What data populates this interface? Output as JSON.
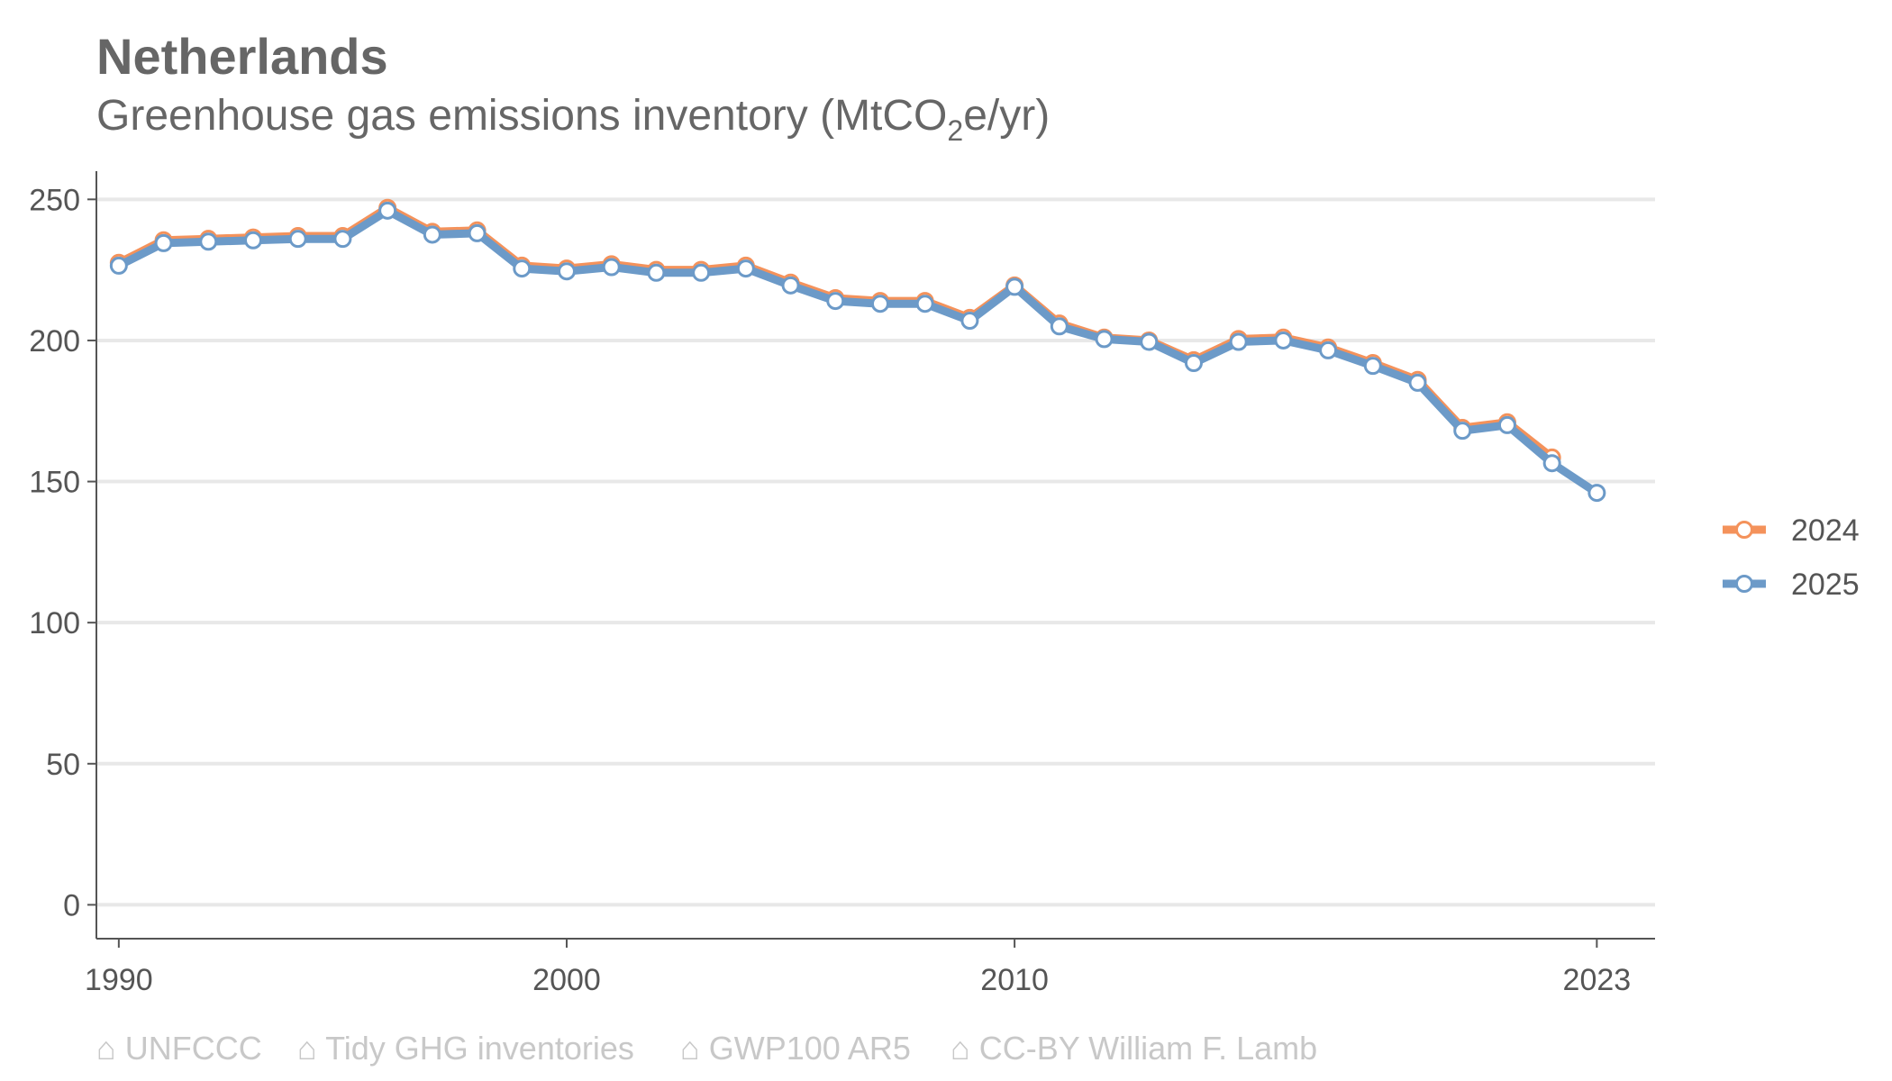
{
  "chart_data": {
    "type": "line",
    "title": "Netherlands",
    "subtitle_main": "Greenhouse gas emissions inventory (MtCO",
    "subtitle_sub": "2",
    "subtitle_end": "e/yr)",
    "xlabel": "",
    "ylabel": "",
    "xlim": [
      1989.5,
      2024.3
    ],
    "ylim": [
      -12,
      260
    ],
    "x_ticks": [
      1990,
      2000,
      2010,
      2023
    ],
    "y_ticks": [
      0,
      50,
      100,
      150,
      200,
      250
    ],
    "grid": "horizontal",
    "legend_position": "right",
    "x": [
      1990,
      1991,
      1992,
      1993,
      1994,
      1995,
      1996,
      1997,
      1998,
      1999,
      2000,
      2001,
      2002,
      2003,
      2004,
      2005,
      2006,
      2007,
      2008,
      2009,
      2010,
      2011,
      2012,
      2013,
      2014,
      2015,
      2016,
      2017,
      2018,
      2019,
      2020,
      2021,
      2022,
      2023
    ],
    "series": [
      {
        "name": "2024",
        "color": "#f4925b",
        "values": [
          227.5,
          235.5,
          236.0,
          236.5,
          237.0,
          237.0,
          247.0,
          238.5,
          239.0,
          226.5,
          225.5,
          227.0,
          225.0,
          225.0,
          226.5,
          220.5,
          215.0,
          214.0,
          214.0,
          208.0,
          219.5,
          206.0,
          201.0,
          200.0,
          193.0,
          200.5,
          201.0,
          197.5,
          192.0,
          186.0,
          169.0,
          171.0,
          158.5,
          null
        ]
      },
      {
        "name": "2025",
        "color": "#6c9ac8",
        "values": [
          226.5,
          234.5,
          235.0,
          235.5,
          236.0,
          236.0,
          246.0,
          237.5,
          238.0,
          225.5,
          224.5,
          226.0,
          224.0,
          224.0,
          225.5,
          219.5,
          214.0,
          213.0,
          213.0,
          207.0,
          219.0,
          205.0,
          200.5,
          199.5,
          192.0,
          199.5,
          200.0,
          196.5,
          191.0,
          185.0,
          168.0,
          170.0,
          156.5,
          146.0
        ]
      }
    ]
  },
  "caption": {
    "icon": "home-icon",
    "items": [
      "⌂ UNFCCC",
      "⌂ Tidy GHG inventories",
      "⌂ GWP100 AR5",
      "⌂ CC-BY William F. Lamb"
    ]
  }
}
